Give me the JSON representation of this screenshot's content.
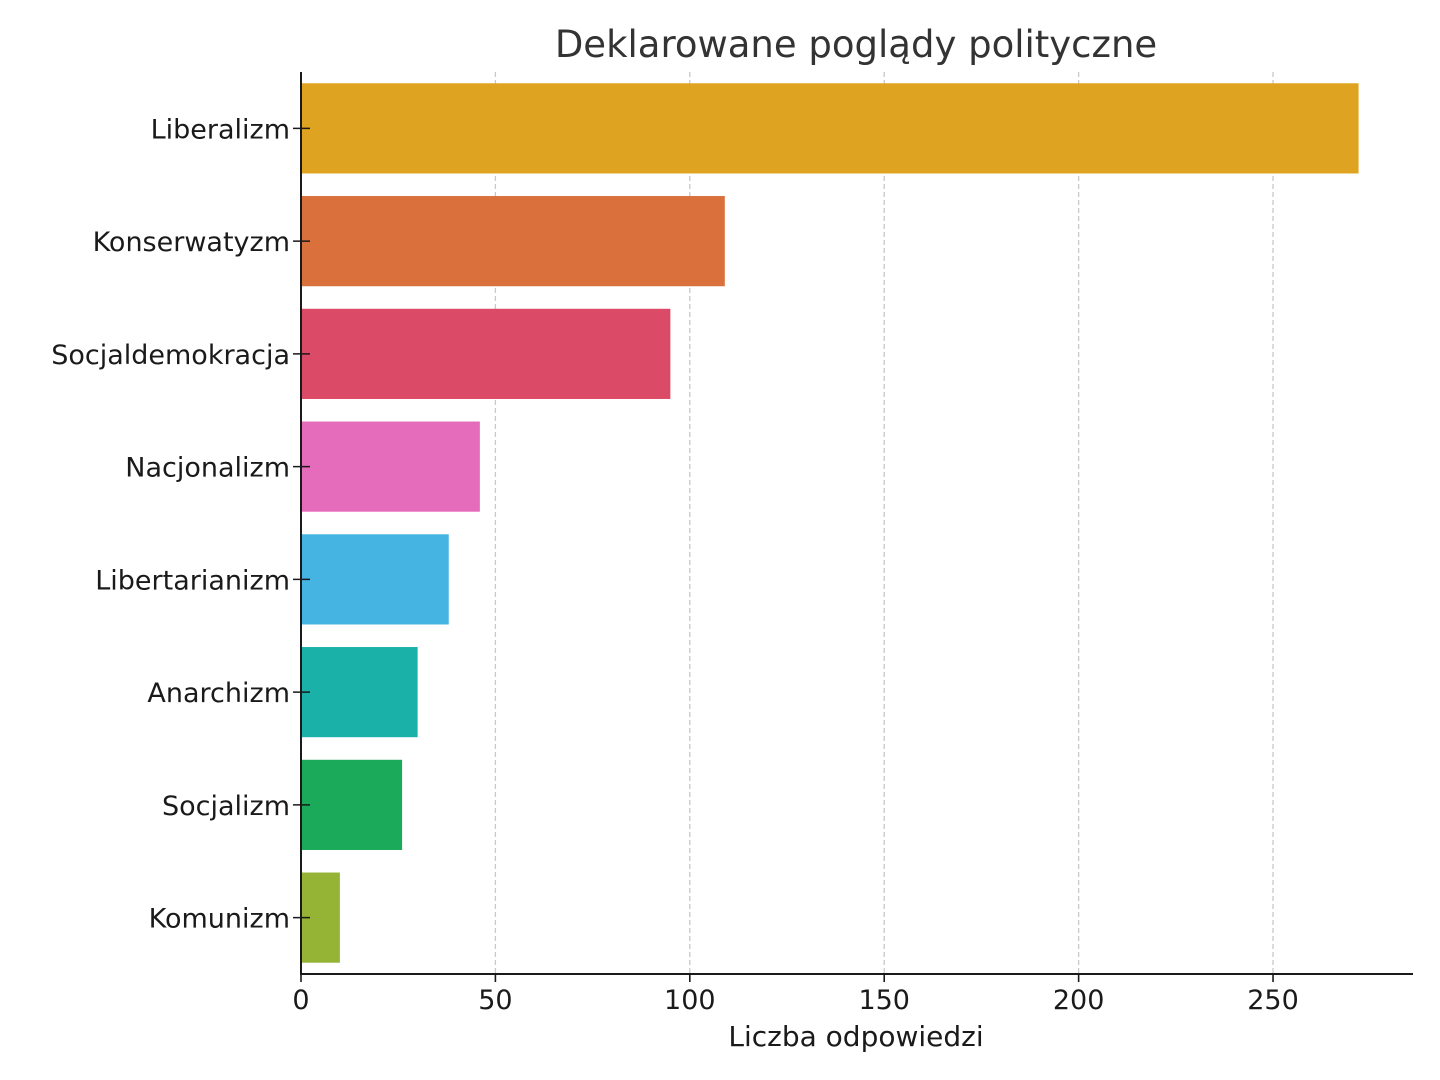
{
  "chart_data": {
    "type": "bar",
    "orientation": "horizontal",
    "title": "Deklarowane poglądy polityczne",
    "xlabel": "Liczba odpowiedzi",
    "ylabel": "",
    "categories": [
      "Liberalizm",
      "Konserwatyzm",
      "Socjaldemokracja",
      "Nacjonalizm",
      "Libertarianizm",
      "Anarchizm",
      "Socjalizm",
      "Komunizm"
    ],
    "values": [
      272,
      109,
      95,
      46,
      38,
      30,
      26,
      10
    ],
    "colors": [
      "#DEA320",
      "#DA703B",
      "#DB4A67",
      "#E46CBB",
      "#45B4E2",
      "#1AB2A8",
      "#1AAA5A",
      "#95B335"
    ],
    "xlim": [
      0,
      286
    ],
    "xticks": [
      0,
      50,
      100,
      150,
      200,
      250
    ],
    "grid": "x-dashed",
    "legend": "none"
  }
}
